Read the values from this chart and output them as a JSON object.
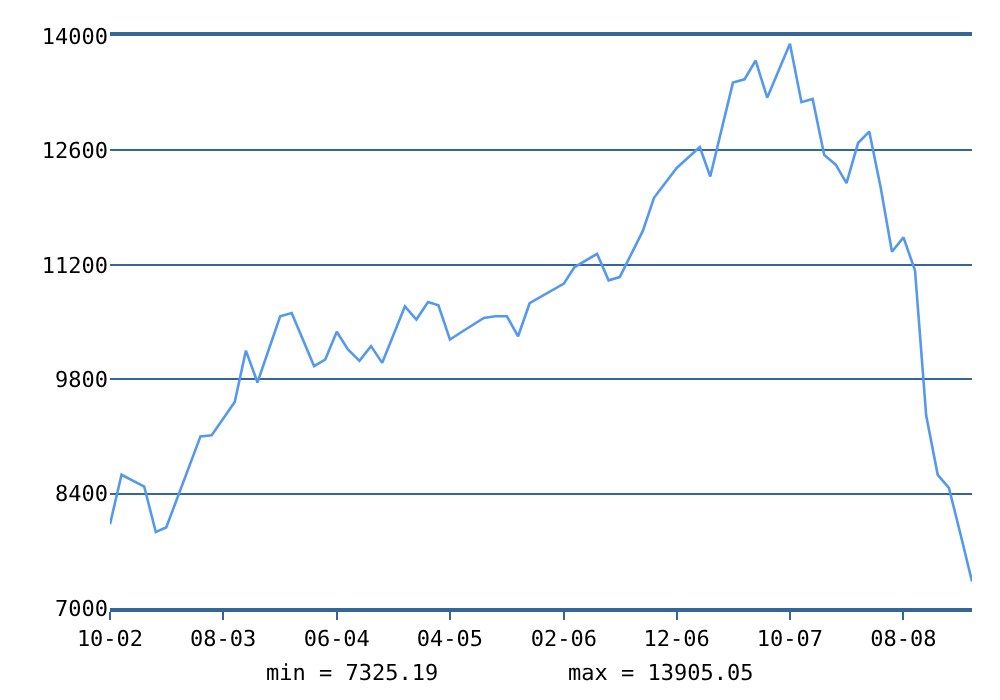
{
  "chart_data": {
    "type": "line",
    "x": [
      "2002-10",
      "2002-11",
      "2003-01",
      "2003-02",
      "2003-03",
      "2003-06",
      "2003-07",
      "2003-09",
      "2003-10",
      "2003-11",
      "2004-01",
      "2004-02",
      "2004-04",
      "2004-05",
      "2004-06",
      "2004-07",
      "2004-08",
      "2004-09",
      "2004-10",
      "2004-12",
      "2005-01",
      "2005-02",
      "2005-03",
      "2005-04",
      "2005-05",
      "2005-07",
      "2005-08",
      "2005-09",
      "2005-10",
      "2005-11",
      "2006-02",
      "2006-03",
      "2006-05",
      "2006-06",
      "2006-07",
      "2006-09",
      "2006-10",
      "2006-12",
      "2007-02",
      "2007-03",
      "2007-05",
      "2007-06",
      "2007-07",
      "2007-08",
      "2007-10",
      "2007-11",
      "2007-12",
      "2008-01",
      "2008-02",
      "2008-03",
      "2008-04",
      "2008-05",
      "2008-06",
      "2008-07",
      "2008-08",
      "2008-09",
      "2008-10",
      "2008-11",
      "2008-12",
      "2009-01",
      "2009-02"
    ],
    "series": [
      {
        "color": "#5599ee",
        "values": [
          8025,
          8630,
          8485,
          7930,
          7985,
          9100,
          9115,
          9520,
          10150,
          9760,
          10570,
          10610,
          9960,
          10040,
          10380,
          10165,
          10025,
          10205,
          10000,
          10690,
          10530,
          10745,
          10705,
          10285,
          10375,
          10550,
          10570,
          10570,
          10325,
          10730,
          10970,
          11170,
          11335,
          11010,
          11050,
          11615,
          12020,
          12385,
          12640,
          12280,
          13430,
          13470,
          13700,
          13245,
          13905.05,
          13190,
          13230,
          12545,
          12425,
          12200,
          12690,
          12830,
          12140,
          11360,
          11535,
          11130,
          9355,
          8630,
          8470,
          7905,
          7325.19
        ]
      }
    ],
    "xlim": [
      "2002-10",
      "2009-02"
    ],
    "xticks": [
      {
        "value": "2002-10",
        "label": "10-02"
      },
      {
        "value": "2003-08",
        "label": "08-03"
      },
      {
        "value": "2004-06",
        "label": "06-04"
      },
      {
        "value": "2005-04",
        "label": "04-05"
      },
      {
        "value": "2006-02",
        "label": "02-06"
      },
      {
        "value": "2006-12",
        "label": "12-06"
      },
      {
        "value": "2007-10",
        "label": "10-07"
      },
      {
        "value": "2008-08",
        "label": "08-08"
      }
    ],
    "ylim": [
      7000,
      14000
    ],
    "yticks": [
      7000,
      8400,
      9800,
      11200,
      12600,
      14000
    ],
    "grid": "y",
    "marker": "none",
    "line_style": "solid",
    "annotations": [
      "min = 7325.19",
      "max = 13905.05"
    ]
  }
}
